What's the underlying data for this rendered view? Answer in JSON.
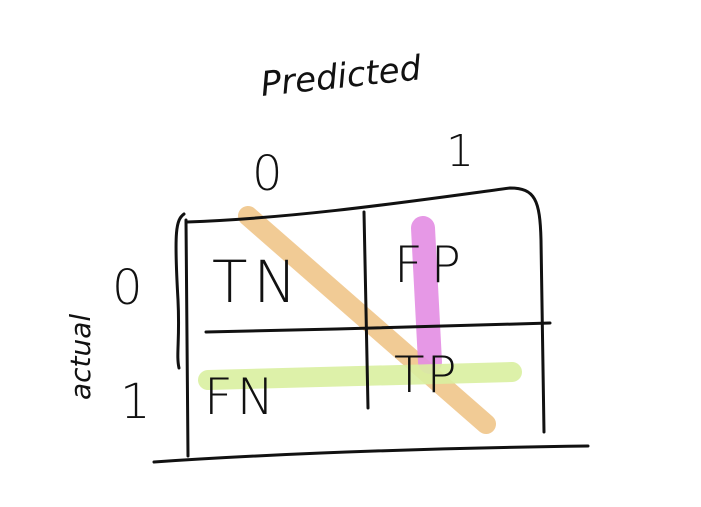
{
  "axes": {
    "predicted_label": "Predicted",
    "actual_label": "actual",
    "predicted_ticks": [
      "0",
      "1"
    ],
    "actual_ticks": [
      "0",
      "1"
    ]
  },
  "cells": {
    "tn": "TN",
    "fp": "FP",
    "fn": "FN",
    "tp": "TP"
  },
  "highlights": {
    "diagonal": {
      "color": "#F0C58A",
      "name": "diagonal-highlight"
    },
    "predicted_positive_column": {
      "color": "#E38DE3",
      "name": "predicted-1-column-highlight"
    },
    "actual_positive_row": {
      "color": "#D9F0A0",
      "name": "actual-1-row-highlight"
    }
  },
  "ink_color": "#111111"
}
